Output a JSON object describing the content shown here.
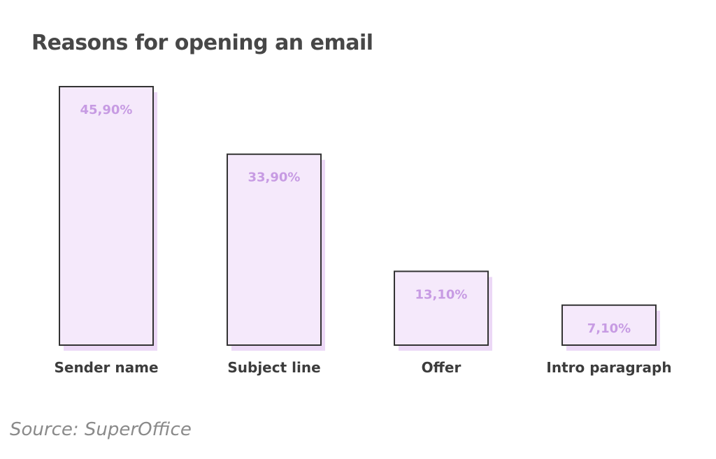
{
  "chart_data": {
    "type": "bar",
    "title": "Reasons for opening an email",
    "categories": [
      "Sender name",
      "Subject line",
      "Offer",
      "Intro paragraph"
    ],
    "values": [
      45.9,
      33.9,
      13.1,
      7.1
    ],
    "data_labels": [
      "45,90%",
      "33,90%",
      "13,10%",
      "7,10%"
    ],
    "xlabel": "",
    "ylabel": "",
    "ylim": [
      0,
      45.9
    ],
    "grid": false,
    "legend": "none",
    "colors": {
      "bar_fill": "#f5e9fb",
      "bar_shadow": "#ecd8f6",
      "bar_outline": "#333333",
      "value_label": "#c79be3",
      "category_label": "#3c3c3c"
    }
  },
  "footer": {
    "source": "Source: SuperOffice"
  }
}
